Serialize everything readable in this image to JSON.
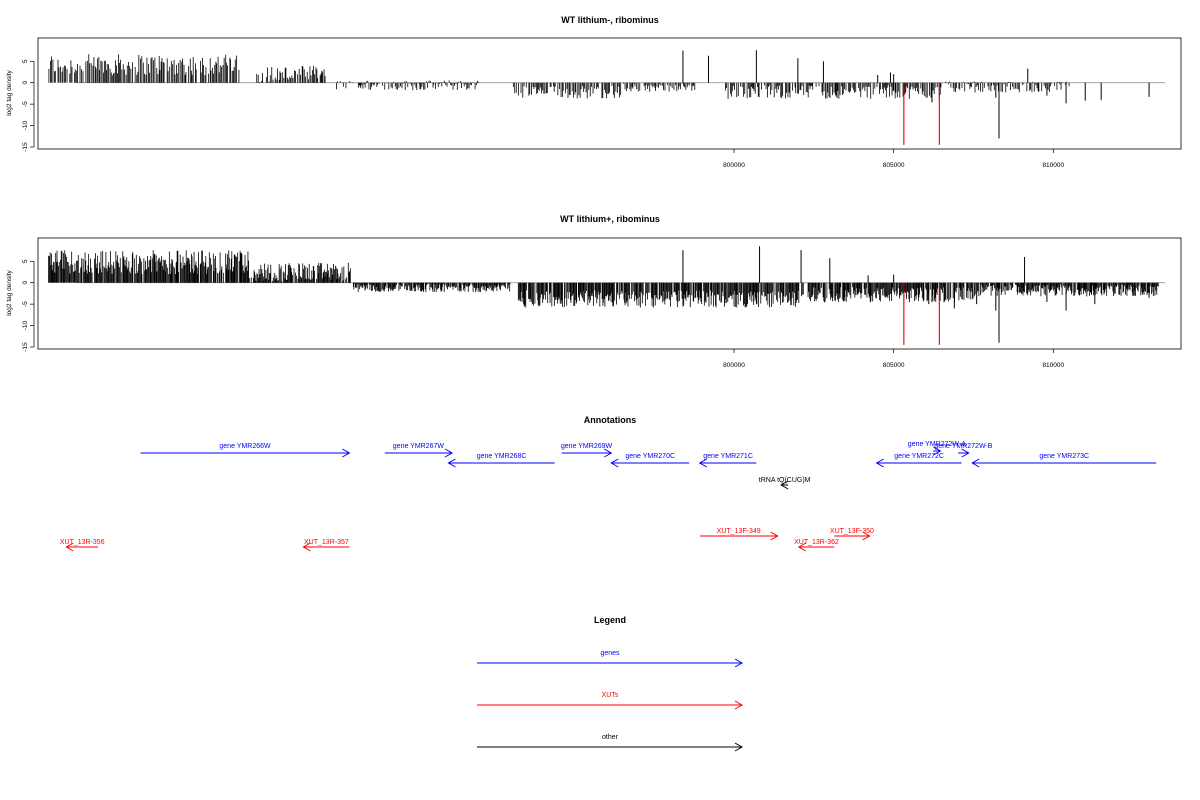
{
  "chart_data": [
    {
      "type": "bar",
      "title": "WT lithium-, ribominus",
      "xlabel": "",
      "ylabel": "log2 tag density",
      "xlim": [
        778200,
        814000
      ],
      "ylim": [
        -15,
        9.5
      ],
      "xticks": [
        800000,
        805000,
        810000
      ],
      "xtick_labels": [
        "800000",
        "805000",
        "810000"
      ],
      "yticks": [
        5,
        0,
        -5,
        -10,
        -15
      ],
      "ytick_labels": [
        "5",
        "0",
        "-5",
        "-10",
        "-15"
      ],
      "highlight_color": "#e00000",
      "series_color": "#000000",
      "bars": [
        {
          "x": 798400,
          "y": 7.5
        },
        {
          "x": 799200,
          "y": 6.3
        },
        {
          "x": 800700,
          "y": 7.6
        },
        {
          "x": 802000,
          "y": 5.7
        },
        {
          "x": 802800,
          "y": 5.0
        },
        {
          "x": 804500,
          "y": 1.8
        },
        {
          "x": 804900,
          "y": 2.4
        },
        {
          "x": 805000,
          "y": 2.0
        },
        {
          "x": 803200,
          "y": -3.2
        },
        {
          "x": 806200,
          "y": -4.6
        },
        {
          "x": 808200,
          "y": -3.5
        },
        {
          "x": 808300,
          "y": -13.0
        },
        {
          "x": 809200,
          "y": 3.3
        },
        {
          "x": 809800,
          "y": -3.0
        },
        {
          "x": 810400,
          "y": -4.8
        },
        {
          "x": 811000,
          "y": -4.2
        },
        {
          "x": 811500,
          "y": -4.0
        },
        {
          "x": 813000,
          "y": -3.3
        }
      ],
      "highlight_bars": [
        {
          "x": 805320,
          "y": -14.5
        },
        {
          "x": 806430,
          "y": -14.5
        }
      ]
    },
    {
      "type": "bar",
      "title": "WT lithium+, ribominus",
      "xlabel": "",
      "ylabel": "log2 tag density",
      "xlim": [
        778200,
        814000
      ],
      "ylim": [
        -15,
        9.5
      ],
      "xticks": [
        800000,
        805000,
        810000
      ],
      "xtick_labels": [
        "800000",
        "805000",
        "810000"
      ],
      "yticks": [
        5,
        0,
        -5,
        -10,
        -15
      ],
      "ytick_labels": [
        "5",
        "0",
        "-5",
        "-10",
        "-15"
      ],
      "highlight_color": "#e00000",
      "series_color": "#000000",
      "bars": [
        {
          "x": 798400,
          "y": 7.6
        },
        {
          "x": 800800,
          "y": 8.5
        },
        {
          "x": 802100,
          "y": 7.6
        },
        {
          "x": 803000,
          "y": 5.7
        },
        {
          "x": 804200,
          "y": 1.7
        },
        {
          "x": 805000,
          "y": 1.9
        },
        {
          "x": 806100,
          "y": -5.0
        },
        {
          "x": 806900,
          "y": -6.0
        },
        {
          "x": 807600,
          "y": -5.0
        },
        {
          "x": 808200,
          "y": -6.5
        },
        {
          "x": 808300,
          "y": -14.0
        },
        {
          "x": 809100,
          "y": 6.0
        },
        {
          "x": 809800,
          "y": -4.5
        },
        {
          "x": 810400,
          "y": -6.5
        },
        {
          "x": 811300,
          "y": -5.0
        },
        {
          "x": 813000,
          "y": -3.5
        }
      ],
      "highlight_bars": [
        {
          "x": 805320,
          "y": -14.5
        },
        {
          "x": 806430,
          "y": -14.5
        }
      ]
    }
  ],
  "annotations": {
    "title": "Annotations",
    "genes_color": "#0000ff",
    "xuts_color": "#ff0000",
    "other_color": "#000000",
    "genes": [
      {
        "label": "gene YMR266W",
        "start": 778900,
        "end": 784800,
        "strand": "+"
      },
      {
        "label": "gene YMR267W",
        "start": 785800,
        "end": 787700,
        "strand": "+"
      },
      {
        "label": "gene YMR268C",
        "start": 787600,
        "end": 790600,
        "strand": "-"
      },
      {
        "label": "gene YMR269W",
        "start": 790800,
        "end": 792200,
        "strand": "+"
      },
      {
        "label": "gene YMR270C",
        "start": 792200,
        "end": 794400,
        "strand": "-"
      },
      {
        "label": "gene YMR271C",
        "start": 794700,
        "end": 796300,
        "strand": "-"
      },
      {
        "label": "gene YMR272C",
        "start": 799700,
        "end": 802100,
        "strand": "-"
      },
      {
        "label": "gene YMR272W-A",
        "start": 801300,
        "end": 801500,
        "strand": "+"
      },
      {
        "label": "gene YMR272W-B",
        "start": 802000,
        "end": 802300,
        "strand": "+"
      },
      {
        "label": "gene YMR273C",
        "start": 802400,
        "end": 807600,
        "strand": "-"
      }
    ],
    "xuts": [
      {
        "label": "XUT_13R-356",
        "start": 776800,
        "end": 777700,
        "strand": "-"
      },
      {
        "label": "XUT_13R-357",
        "start": 783500,
        "end": 784800,
        "strand": "-"
      },
      {
        "label": "XUT_13F-349",
        "start": 794700,
        "end": 796900,
        "strand": "+"
      },
      {
        "label": "XUT_13R-362",
        "start": 797500,
        "end": 798500,
        "strand": "-"
      },
      {
        "label": "XUT_13F-350",
        "start": 798500,
        "end": 799500,
        "strand": "+"
      }
    ],
    "other": [
      {
        "label": "tRNA tQ(CUG)M",
        "start": 797000,
        "end": 797200,
        "strand": "-"
      }
    ]
  },
  "legend": {
    "title": "Legend",
    "items": [
      {
        "label": "genes",
        "color": "#0000ff"
      },
      {
        "label": "XUTs",
        "color": "#ff0000"
      },
      {
        "label": "other",
        "color": "#000000"
      }
    ]
  }
}
